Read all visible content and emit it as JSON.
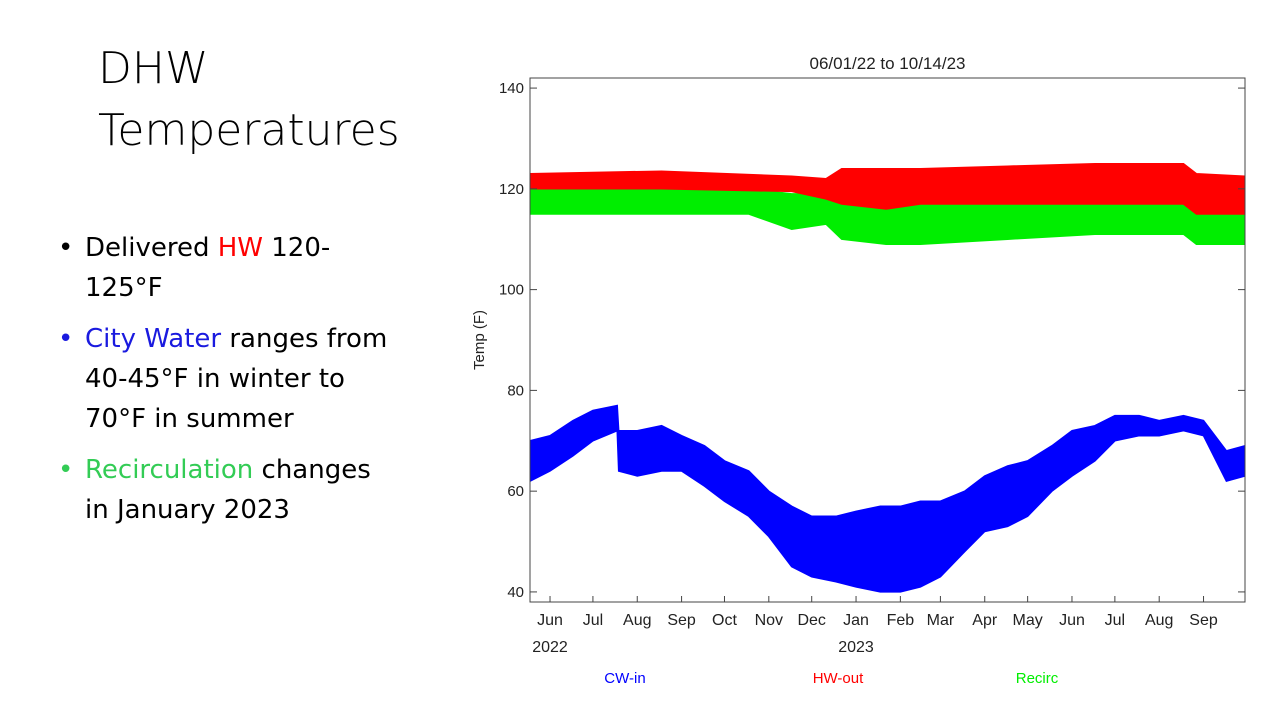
{
  "slide": {
    "title_line1": "DHW",
    "title_line2": "Temperatures",
    "bullets": [
      {
        "parts": [
          {
            "text": "Delivered ",
            "color": "#000000"
          },
          {
            "text": "HW",
            "color": "#ff0000"
          },
          {
            "text": " 120-125°F",
            "color": "#000000"
          }
        ],
        "bullet_color": "#000000"
      },
      {
        "parts": [
          {
            "text": "City Water",
            "color": "#1a1adf"
          },
          {
            "text": " ranges from 40-45°F in winter to 70°F in summer",
            "color": "#000000"
          }
        ],
        "bullet_color": "#1a1adf"
      },
      {
        "parts": [
          {
            "text": "Recirculation",
            "color": "#33cc55"
          },
          {
            "text": " changes in January 2023",
            "color": "#000000"
          }
        ],
        "bullet_color": "#33cc55"
      }
    ]
  },
  "chart_data": {
    "type": "line",
    "title": "06/01/22 to 10/14/23",
    "ylabel": "Temp (F)",
    "xlabel": "",
    "ylim": [
      38,
      142
    ],
    "yticks": [
      40,
      60,
      80,
      100,
      120,
      140
    ],
    "x_range": [
      "2022-06-01",
      "2023-10-14"
    ],
    "month_ticks": [
      {
        "label": "Jun",
        "date": "2022-06-15"
      },
      {
        "label": "Jul",
        "date": "2022-07-15"
      },
      {
        "label": "Aug",
        "date": "2022-08-15"
      },
      {
        "label": "Sep",
        "date": "2022-09-15"
      },
      {
        "label": "Oct",
        "date": "2022-10-15"
      },
      {
        "label": "Nov",
        "date": "2022-11-15"
      },
      {
        "label": "Dec",
        "date": "2022-12-15"
      },
      {
        "label": "Jan",
        "date": "2023-01-15"
      },
      {
        "label": "Feb",
        "date": "2023-02-15"
      },
      {
        "label": "Mar",
        "date": "2023-03-15"
      },
      {
        "label": "Apr",
        "date": "2023-04-15"
      },
      {
        "label": "May",
        "date": "2023-05-15"
      },
      {
        "label": "Jun",
        "date": "2023-06-15"
      },
      {
        "label": "Jul",
        "date": "2023-07-15"
      },
      {
        "label": "Aug",
        "date": "2023-08-15"
      },
      {
        "label": "Sep",
        "date": "2023-09-15"
      }
    ],
    "year_labels": [
      {
        "label": "2022",
        "date": "2022-06-15"
      },
      {
        "label": "2023",
        "date": "2023-01-15"
      }
    ],
    "grid": false,
    "legend_position": "bottom",
    "series": [
      {
        "name": "CW-in",
        "color": "#0000ff",
        "x": [
          "2022-06-01",
          "2022-06-15",
          "2022-07-01",
          "2022-07-15",
          "2022-08-01",
          "2022-08-02",
          "2022-08-15",
          "2022-09-01",
          "2022-09-15",
          "2022-10-01",
          "2022-10-15",
          "2022-11-01",
          "2022-11-15",
          "2022-12-01",
          "2022-12-15",
          "2023-01-01",
          "2023-01-15",
          "2023-02-01",
          "2023-02-15",
          "2023-03-01",
          "2023-03-15",
          "2023-04-01",
          "2023-04-15",
          "2023-05-01",
          "2023-05-15",
          "2023-06-01",
          "2023-06-15",
          "2023-07-01",
          "2023-07-15",
          "2023-08-01",
          "2023-08-15",
          "2023-09-01",
          "2023-09-15",
          "2023-10-01",
          "2023-10-14"
        ],
        "low": [
          62,
          64,
          67,
          70,
          72,
          64,
          63,
          64,
          64,
          61,
          58,
          55,
          51,
          45,
          43,
          42,
          41,
          40,
          40,
          41,
          43,
          48,
          52,
          53,
          55,
          60,
          63,
          66,
          70,
          71,
          71,
          72,
          71,
          62,
          63
        ],
        "high": [
          70,
          71,
          74,
          76,
          77,
          72,
          72,
          73,
          71,
          69,
          66,
          64,
          60,
          57,
          55,
          55,
          56,
          57,
          57,
          58,
          58,
          60,
          63,
          65,
          66,
          69,
          72,
          73,
          75,
          75,
          74,
          75,
          74,
          68,
          69
        ]
      },
      {
        "name": "HW-out",
        "color": "#ff0000",
        "x": [
          "2022-06-01",
          "2022-09-01",
          "2022-12-01",
          "2022-12-25",
          "2023-01-05",
          "2023-02-05",
          "2023-03-01",
          "2023-05-01",
          "2023-07-01",
          "2023-09-01",
          "2023-09-10",
          "2023-10-14"
        ],
        "low": [
          120,
          120,
          119.5,
          118,
          117,
          116,
          117,
          117,
          117,
          117,
          115,
          115
        ],
        "high": [
          123,
          123.5,
          122.5,
          122,
          124,
          124,
          124,
          124.5,
          125,
          125,
          123,
          122.5
        ]
      },
      {
        "name": "Recirc",
        "color": "#00ee00",
        "x": [
          "2022-06-01",
          "2022-09-01",
          "2022-11-01",
          "2022-12-01",
          "2022-12-25",
          "2023-01-05",
          "2023-02-05",
          "2023-03-01",
          "2023-05-01",
          "2023-07-01",
          "2023-09-01",
          "2023-09-10",
          "2023-10-14"
        ],
        "low": [
          115,
          115,
          115,
          112,
          113,
          110,
          109,
          109,
          110,
          111,
          111,
          109,
          109
        ],
        "high": [
          120,
          120.5,
          120,
          119,
          119,
          120,
          119,
          118,
          118,
          118,
          119,
          117,
          116
        ]
      }
    ]
  }
}
